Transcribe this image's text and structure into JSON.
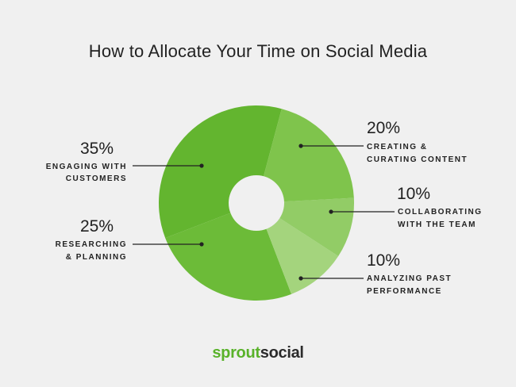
{
  "chart_data": {
    "type": "pie",
    "title": "How to Allocate Your Time on Social Media",
    "slices": [
      {
        "percent_label": "35%",
        "label_lines": [
          "ENGAGING WITH",
          "CUSTOMERS"
        ],
        "value": 35,
        "color": "#63b52f"
      },
      {
        "percent_label": "25%",
        "label_lines": [
          "RESEARCHING",
          "& PLANNING"
        ],
        "value": 25,
        "color": "#6cbb38"
      },
      {
        "percent_label": "10%",
        "label_lines": [
          "ANALYZING PAST",
          "PERFORMANCE"
        ],
        "value": 10,
        "color": "#a4d47d"
      },
      {
        "percent_label": "10%",
        "label_lines": [
          "COLLABORATING",
          "WITH THE TEAM"
        ],
        "value": 10,
        "color": "#92cc66"
      },
      {
        "percent_label": "20%",
        "label_lines": [
          "CREATING &",
          "CURATING CONTENT"
        ],
        "value": 20,
        "color": "#7fc44c"
      }
    ]
  },
  "brand": {
    "part1": "sprout",
    "part2": "social",
    "accent": "#59b22a"
  }
}
